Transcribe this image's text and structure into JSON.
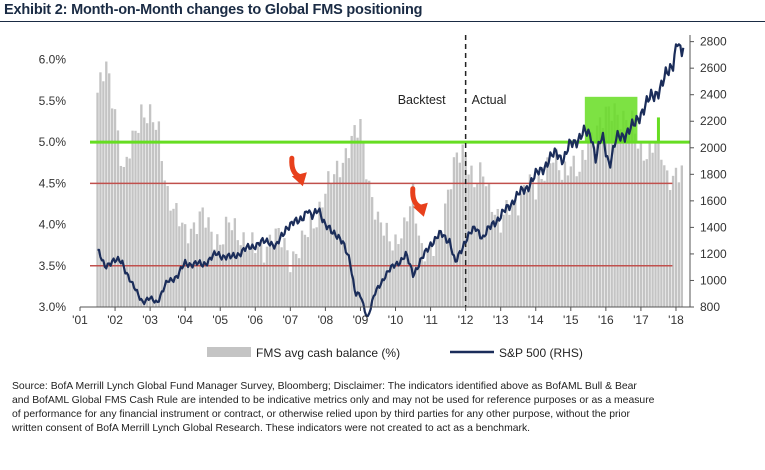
{
  "title": "Exhibit 2: Month-on-Month changes to Global FMS positioning",
  "source": {
    "line1": "Source:  BofA Merrill Lynch Global Fund Manager Survey, Bloomberg; Disclaimer: The indicators identified above as BofAML Bull & Bear",
    "line2": "and BofAML Global FMS Cash Rule are intended to be indicative metrics only and may not be used for reference purposes  or as a measure",
    "line3": "of performance for any financial instrument or contract, or otherwise relied upon by third parties for any other purpose, without the prior",
    "line4": " written consent  of BofA Merrill Lynch Global Research. These indicators  were not created to act as a benchmark."
  },
  "chart_data": {
    "type": "bar+line",
    "xlim": [
      2001.0,
      2018.4
    ],
    "x_ticks": [
      2001,
      2002,
      2003,
      2004,
      2005,
      2006,
      2007,
      2008,
      2009,
      2010,
      2011,
      2012,
      2013,
      2014,
      2015,
      2016,
      2017,
      2018
    ],
    "x_tick_labels": [
      "'01",
      "'02",
      "'03",
      "'04",
      "'05",
      "'06",
      "'07",
      "'08",
      "'09",
      "'10",
      "'11",
      "'12",
      "'13",
      "'14",
      "'15",
      "'16",
      "'17",
      "'18"
    ],
    "y_left": {
      "lim": [
        3.0,
        6.3
      ],
      "ticks": [
        3.0,
        3.5,
        4.0,
        4.5,
        5.0,
        5.5,
        6.0
      ],
      "tick_labels": [
        "3.0%",
        "3.5%",
        "4.0%",
        "4.5%",
        "5.0%",
        "5.5%",
        "6.0%"
      ]
    },
    "y_right": {
      "lim": [
        800,
        2850
      ],
      "ticks": [
        800,
        1000,
        1200,
        1400,
        1600,
        1800,
        2000,
        2200,
        2400,
        2600,
        2800
      ],
      "tick_labels": [
        "800",
        "1000",
        "1200",
        "1400",
        "1600",
        "1800",
        "2000",
        "2200",
        "2400",
        "2600",
        "2800"
      ]
    },
    "cash_series": {
      "name": "FMS avg cash balance (%)",
      "color": "#c4c4c4",
      "points": [
        [
          2001.5,
          5.6
        ],
        [
          2001.75,
          5.9
        ],
        [
          2002.0,
          5.4
        ],
        [
          2002.25,
          4.6
        ],
        [
          2002.5,
          5.0
        ],
        [
          2002.75,
          5.4
        ],
        [
          2003.0,
          5.3
        ],
        [
          2003.25,
          5.1
        ],
        [
          2003.5,
          4.4
        ],
        [
          2003.75,
          4.1
        ],
        [
          2004.0,
          3.9
        ],
        [
          2004.25,
          4.0
        ],
        [
          2004.5,
          4.1
        ],
        [
          2004.75,
          3.9
        ],
        [
          2005.0,
          3.8
        ],
        [
          2005.25,
          4.0
        ],
        [
          2005.5,
          3.9
        ],
        [
          2005.75,
          3.8
        ],
        [
          2006.0,
          3.7
        ],
        [
          2006.25,
          3.7
        ],
        [
          2006.5,
          3.9
        ],
        [
          2006.75,
          3.8
        ],
        [
          2007.0,
          3.6
        ],
        [
          2007.25,
          3.7
        ],
        [
          2007.5,
          3.9
        ],
        [
          2007.75,
          4.1
        ],
        [
          2008.0,
          4.4
        ],
        [
          2008.25,
          4.6
        ],
        [
          2008.5,
          4.8
        ],
        [
          2008.75,
          5.0
        ],
        [
          2009.0,
          5.2
        ],
        [
          2009.25,
          4.5
        ],
        [
          2009.5,
          4.0
        ],
        [
          2009.75,
          3.9
        ],
        [
          2010.0,
          3.8
        ],
        [
          2010.25,
          3.9
        ],
        [
          2010.5,
          4.4
        ],
        [
          2010.75,
          3.7
        ],
        [
          2011.0,
          3.6
        ],
        [
          2011.25,
          3.9
        ],
        [
          2011.5,
          4.4
        ],
        [
          2011.75,
          4.8
        ],
        [
          2012.0,
          4.9
        ],
        [
          2012.25,
          4.5
        ],
        [
          2012.5,
          4.6
        ],
        [
          2012.75,
          4.3
        ],
        [
          2013.0,
          4.0
        ],
        [
          2013.25,
          4.2
        ],
        [
          2013.5,
          4.3
        ],
        [
          2013.75,
          4.5
        ],
        [
          2014.0,
          4.4
        ],
        [
          2014.25,
          4.7
        ],
        [
          2014.5,
          4.8
        ],
        [
          2014.75,
          4.6
        ],
        [
          2015.0,
          4.8
        ],
        [
          2015.25,
          4.6
        ],
        [
          2015.5,
          5.0
        ],
        [
          2015.75,
          5.2
        ],
        [
          2016.0,
          5.3
        ],
        [
          2016.25,
          5.4
        ],
        [
          2016.5,
          5.3
        ],
        [
          2016.75,
          5.2
        ],
        [
          2017.0,
          4.9
        ],
        [
          2017.25,
          4.9
        ],
        [
          2017.5,
          5.0
        ],
        [
          2017.75,
          4.6
        ],
        [
          2018.0,
          4.6
        ],
        [
          2018.2,
          4.6
        ]
      ]
    },
    "spx_series": {
      "name": "S&P 500 (RHS)",
      "color": "#1b2d5a",
      "points": [
        [
          2001.5,
          1230
        ],
        [
          2001.7,
          1100
        ],
        [
          2001.9,
          1150
        ],
        [
          2002.2,
          1140
        ],
        [
          2002.5,
          960
        ],
        [
          2002.8,
          840
        ],
        [
          2003.0,
          860
        ],
        [
          2003.2,
          840
        ],
        [
          2003.5,
          990
        ],
        [
          2003.8,
          1040
        ],
        [
          2004.0,
          1130
        ],
        [
          2004.5,
          1120
        ],
        [
          2004.9,
          1200
        ],
        [
          2005.3,
          1170
        ],
        [
          2005.7,
          1230
        ],
        [
          2006.0,
          1270
        ],
        [
          2006.4,
          1300
        ],
        [
          2006.6,
          1250
        ],
        [
          2006.9,
          1410
        ],
        [
          2007.2,
          1440
        ],
        [
          2007.5,
          1530
        ],
        [
          2007.6,
          1460
        ],
        [
          2007.8,
          1560
        ],
        [
          2008.0,
          1400
        ],
        [
          2008.3,
          1360
        ],
        [
          2008.5,
          1270
        ],
        [
          2008.7,
          1160
        ],
        [
          2008.85,
          900
        ],
        [
          2009.0,
          880
        ],
        [
          2009.2,
          720
        ],
        [
          2009.4,
          890
        ],
        [
          2009.7,
          1040
        ],
        [
          2010.0,
          1120
        ],
        [
          2010.3,
          1190
        ],
        [
          2010.5,
          1050
        ],
        [
          2010.8,
          1180
        ],
        [
          2011.0,
          1280
        ],
        [
          2011.3,
          1350
        ],
        [
          2011.55,
          1300
        ],
        [
          2011.7,
          1120
        ],
        [
          2011.9,
          1250
        ],
        [
          2012.0,
          1310
        ],
        [
          2012.3,
          1400
        ],
        [
          2012.5,
          1320
        ],
        [
          2012.8,
          1440
        ],
        [
          2013.0,
          1480
        ],
        [
          2013.4,
          1620
        ],
        [
          2013.7,
          1690
        ],
        [
          2014.0,
          1790
        ],
        [
          2014.3,
          1880
        ],
        [
          2014.6,
          1970
        ],
        [
          2014.8,
          1910
        ],
        [
          2015.0,
          2030
        ],
        [
          2015.4,
          2110
        ],
        [
          2015.6,
          2100
        ],
        [
          2015.7,
          1920
        ],
        [
          2015.9,
          2080
        ],
        [
          2016.1,
          1880
        ],
        [
          2016.3,
          2060
        ],
        [
          2016.5,
          2100
        ],
        [
          2016.8,
          2160
        ],
        [
          2017.0,
          2270
        ],
        [
          2017.3,
          2380
        ],
        [
          2017.6,
          2470
        ],
        [
          2017.9,
          2640
        ],
        [
          2018.05,
          2820
        ],
        [
          2018.15,
          2650
        ],
        [
          2018.2,
          2760
        ]
      ]
    },
    "reference_lines": [
      {
        "axis": "left",
        "y": 5.0,
        "color": "#66dd22",
        "label": ""
      },
      {
        "axis": "left",
        "y": 4.5,
        "color": "#c0504d",
        "label": ""
      },
      {
        "axis": "left",
        "y": 3.5,
        "color": "#c0504d",
        "label": ""
      }
    ],
    "divider": {
      "x": 2012.0,
      "left_label": "Backtest",
      "right_label": "Actual"
    },
    "highlight": {
      "x0": 2015.4,
      "x1": 2016.9,
      "y0_left": 5.0,
      "y1_left": 5.55,
      "color": "#66dd22"
    },
    "highlight_leg": {
      "x": 2017.5,
      "y0_left": 5.0,
      "y1_left": 5.3
    },
    "arrows": [
      {
        "x": 2007.3,
        "y_right": 1740
      },
      {
        "x": 2010.75,
        "y_right": 1510
      }
    ]
  }
}
